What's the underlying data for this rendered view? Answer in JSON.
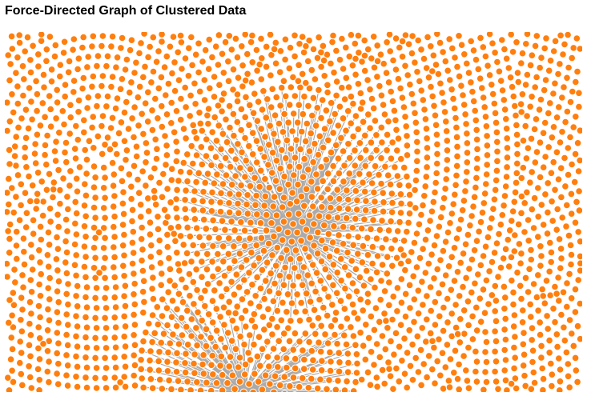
{
  "header": {
    "title": "Force-Directed Graph of Clustered Data"
  },
  "graph": {
    "type": "force-directed-network",
    "node_color": "#ff7f0e",
    "node_stroke_color": "#ffffff",
    "link_color": "#aaaaaa",
    "background": "#ffffff"
  }
}
